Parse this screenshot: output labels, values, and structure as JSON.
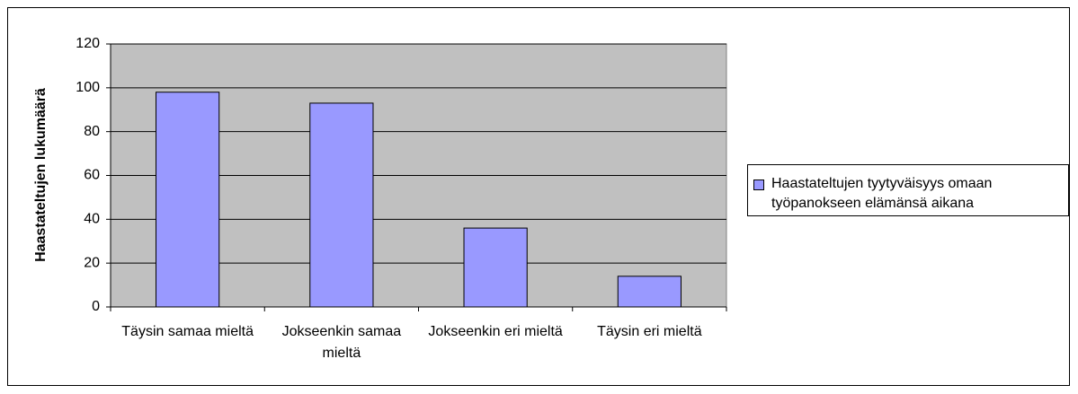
{
  "chart_data": {
    "type": "bar",
    "y_label": "Haastateltujen lukumäärä",
    "categories": [
      "Täysin samaa mieltä",
      "Jokseenkin samaa mieltä",
      "Jokseenkin eri mieltä",
      "Täysin eri mieltä"
    ],
    "series": [
      {
        "name": "Haastateltujen tyytyväisyys omaan työpanokseen elämänsä aikana",
        "color": "#9999ff",
        "values": [
          98,
          93,
          36,
          14
        ]
      }
    ],
    "ylim": [
      0,
      120
    ],
    "yticks": [
      0,
      20,
      40,
      60,
      80,
      100,
      120
    ],
    "grid": true,
    "legend": "right"
  }
}
